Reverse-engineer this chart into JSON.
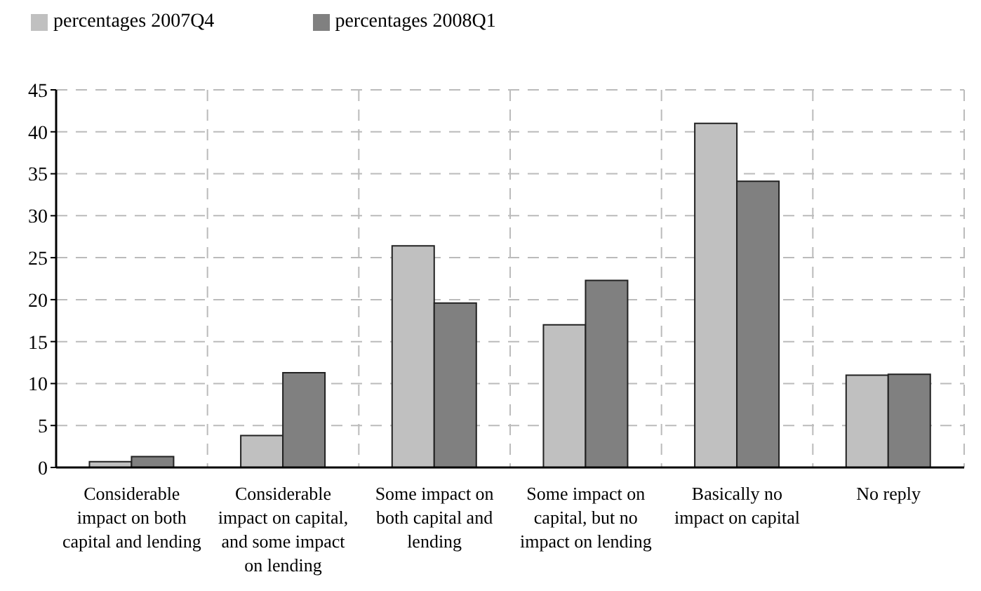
{
  "chart_data": {
    "type": "bar",
    "categories": [
      "Considerable impact on both capital and lending",
      "Considerable impact on capital, and some impact on lending",
      "Some impact on both capital and lending",
      "Some impact on capital, but no impact on lending",
      "Basically no impact on capital",
      "No reply"
    ],
    "series": [
      {
        "name": "percentages 2007Q4",
        "color": "#c0c0c0",
        "values": [
          0.7,
          3.8,
          26.4,
          17.0,
          41.0,
          11.0
        ]
      },
      {
        "name": "percentages 2008Q1",
        "color": "#808080",
        "values": [
          1.3,
          11.3,
          19.6,
          22.3,
          34.1,
          11.1
        ]
      }
    ],
    "ylim": [
      0,
      45
    ],
    "yticks": [
      0,
      5,
      10,
      15,
      20,
      25,
      30,
      35,
      40,
      45
    ],
    "grid": true,
    "legend": "top left"
  }
}
